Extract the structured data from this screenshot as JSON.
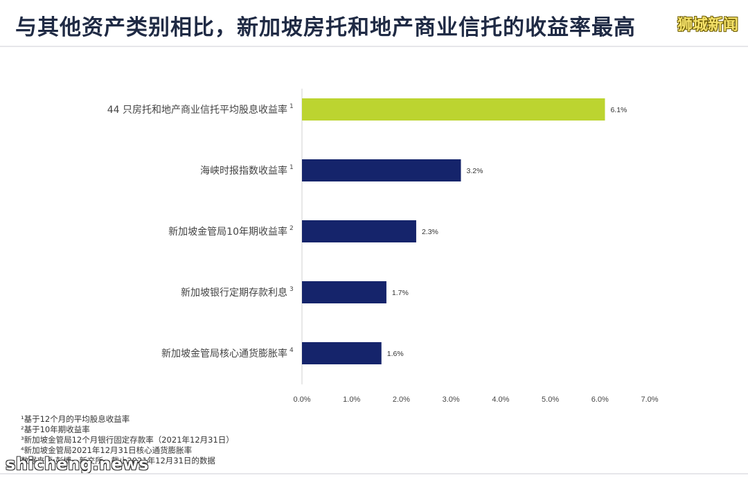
{
  "title": "与其他资产类别相比，新加坡房托和地产商业信托的收益率最高",
  "watermark_top": "狮城新闻",
  "watermark_bottom": "shicheng.news",
  "chart_data": {
    "type": "bar",
    "orientation": "horizontal",
    "categories": [
      {
        "label": "44 只房托和地产商业信托平均股息收益率",
        "sup": "1"
      },
      {
        "label": "海峡时报指数收益率",
        "sup": "1"
      },
      {
        "label": "新加坡金管局10年期收益率",
        "sup": "2"
      },
      {
        "label": "新加坡银行定期存款利息",
        "sup": "3"
      },
      {
        "label": "新加坡金管局核心通货膨胀率",
        "sup": "4"
      }
    ],
    "values": [
      6.1,
      3.2,
      2.3,
      1.7,
      1.6
    ],
    "value_labels": [
      "6.1%",
      "3.2%",
      "2.3%",
      "1.7%",
      "1.6%"
    ],
    "colors": [
      "#bcd430",
      "#15246b",
      "#15246b",
      "#15246b",
      "#15246b"
    ],
    "xlim": [
      0,
      7
    ],
    "xticks": [
      "0.0%",
      "1.0%",
      "2.0%",
      "3.0%",
      "4.0%",
      "5.0%",
      "6.0%",
      "7.0%"
    ],
    "grid": false
  },
  "notes": [
    "¹基于12个月的平均股息收益率",
    "²基于10年期收益率",
    "³新加坡金管局12个月银行固定存款率（2021年12月31日）",
    "⁴新加坡金管局2021年12月31日核心通货膨胀率",
    "数据来源:彭博，新交所，截止2021年12月31日的数据"
  ]
}
